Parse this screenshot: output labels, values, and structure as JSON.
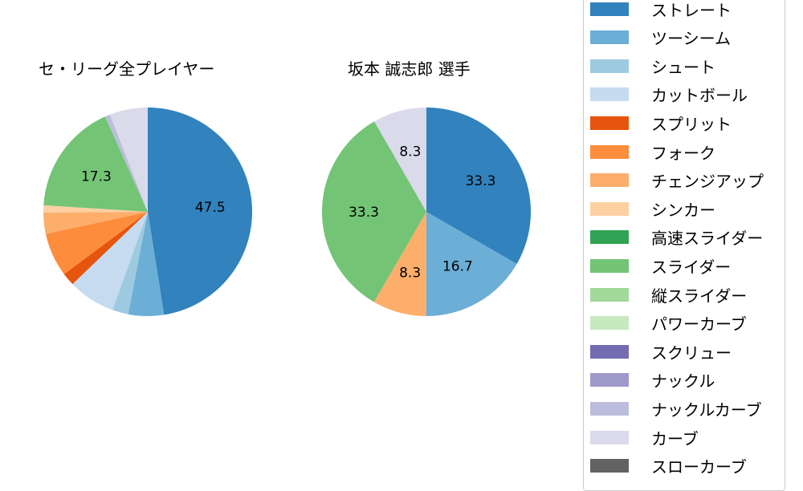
{
  "chart_data": [
    {
      "type": "pie",
      "title": "セ・リーグ全プレイヤー",
      "categories": [
        "ストレート",
        "ツーシーム",
        "シュート",
        "カットボール",
        "スプリット",
        "フォーク",
        "チェンジアップ",
        "シンカー",
        "スライダー",
        "ナックルカーブ",
        "カーブ"
      ],
      "values": [
        47.5,
        5.5,
        2.5,
        7.3,
        2.0,
        6.8,
        3.3,
        1.1,
        17.3,
        0.8,
        5.9
      ],
      "labels_shown": {
        "ストレート": "47.5",
        "スライダー": "17.3"
      },
      "start_angle": 90,
      "direction": "clockwise"
    },
    {
      "type": "pie",
      "title": "坂本 誠志郎  選手",
      "categories": [
        "ストレート",
        "ツーシーム",
        "チェンジアップ",
        "スライダー",
        "カーブ"
      ],
      "values": [
        33.3,
        16.7,
        8.3,
        33.3,
        8.3
      ],
      "labels_shown": {
        "ストレート": "33.3",
        "ツーシーム": "16.7",
        "チェンジアップ": "8.3",
        "スライダー": "33.3",
        "カーブ": "8.3"
      },
      "start_angle": 90,
      "direction": "clockwise"
    }
  ],
  "titles": {
    "left": "セ・リーグ全プレイヤー",
    "right": "坂本 誠志郎  選手"
  },
  "legend": [
    {
      "label": "ストレート",
      "color": "#3182bd"
    },
    {
      "label": "ツーシーム",
      "color": "#6baed6"
    },
    {
      "label": "シュート",
      "color": "#9ecae1"
    },
    {
      "label": "カットボール",
      "color": "#c6dbef"
    },
    {
      "label": "スプリット",
      "color": "#e6550d"
    },
    {
      "label": "フォーク",
      "color": "#fd8d3c"
    },
    {
      "label": "チェンジアップ",
      "color": "#fdae6b"
    },
    {
      "label": "シンカー",
      "color": "#fdd0a2"
    },
    {
      "label": "高速スライダー",
      "color": "#31a354"
    },
    {
      "label": "スライダー",
      "color": "#74c476"
    },
    {
      "label": "縦スライダー",
      "color": "#a1d99b"
    },
    {
      "label": "パワーカーブ",
      "color": "#c7e9c0"
    },
    {
      "label": "スクリュー",
      "color": "#756bb1"
    },
    {
      "label": "ナックル",
      "color": "#9e9ac8"
    },
    {
      "label": "ナックルカーブ",
      "color": "#bcbddc"
    },
    {
      "label": "カーブ",
      "color": "#dadaeb"
    },
    {
      "label": "スローカーブ",
      "color": "#636363"
    }
  ]
}
